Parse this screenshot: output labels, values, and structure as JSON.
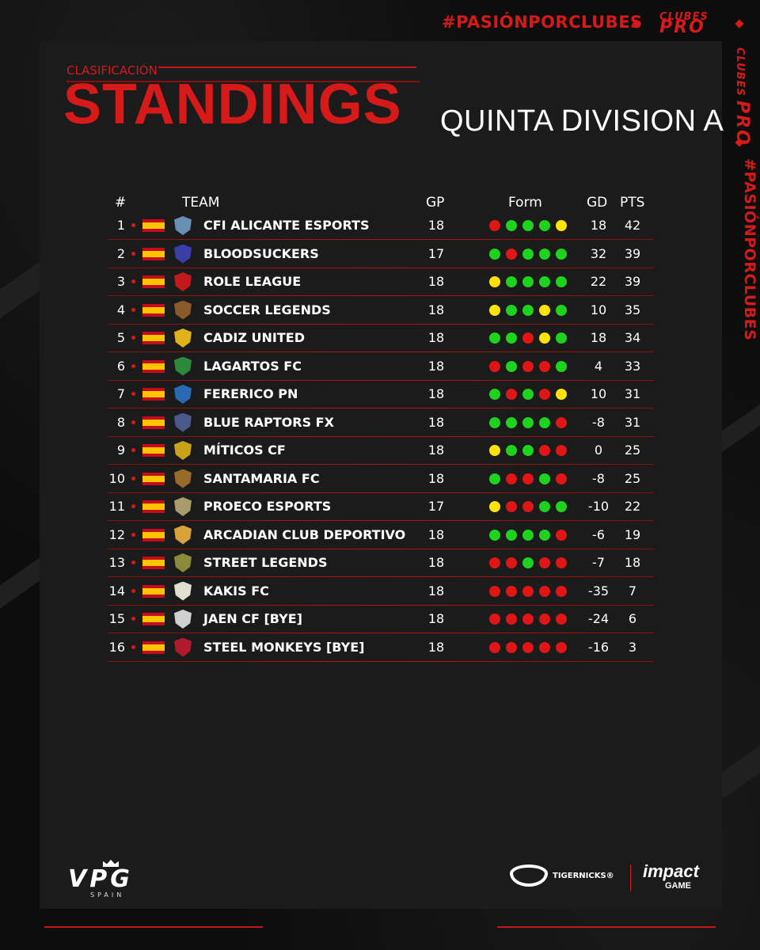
{
  "header": {
    "hashtag": "#PASIÓNPORCLUBES",
    "logo_top": "CLUBES",
    "logo_bottom": "PRO",
    "side_hashtag": "#PASIÓNPORCLUBES"
  },
  "title": {
    "subtitle": "CLASIFICACIÓN",
    "main": "STANDINGS",
    "division": "QUINTA DIVISION A"
  },
  "columns": {
    "rank": "#",
    "team": "TEAM",
    "gp": "GP",
    "form": "Form",
    "gd": "GD",
    "pts": "PTS"
  },
  "form_colors": {
    "W": "#1ed31e",
    "L": "#e01515",
    "D": "#ffe20a"
  },
  "rows": [
    {
      "rank": "1",
      "team": "CFI ALICANTE ESPORTS",
      "gp": "18",
      "form": [
        "L",
        "W",
        "W",
        "W",
        "D"
      ],
      "gd": "18",
      "pts": "42",
      "crest": "#6a8fb5"
    },
    {
      "rank": "2",
      "team": "BLOODSUCKERS",
      "gp": "17",
      "form": [
        "W",
        "L",
        "W",
        "W",
        "W"
      ],
      "gd": "32",
      "pts": "39",
      "crest": "#3a3fa8"
    },
    {
      "rank": "3",
      "team": "ROLE LEAGUE",
      "gp": "18",
      "form": [
        "D",
        "W",
        "W",
        "W",
        "W"
      ],
      "gd": "22",
      "pts": "39",
      "crest": "#c21a1a"
    },
    {
      "rank": "4",
      "team": "SOCCER LEGENDS",
      "gp": "18",
      "form": [
        "D",
        "W",
        "W",
        "D",
        "W"
      ],
      "gd": "10",
      "pts": "35",
      "crest": "#8a5a2a"
    },
    {
      "rank": "5",
      "team": "CADIZ UNITED",
      "gp": "18",
      "form": [
        "W",
        "W",
        "L",
        "D",
        "W"
      ],
      "gd": "18",
      "pts": "34",
      "crest": "#e0b21a"
    },
    {
      "rank": "6",
      "team": "LAGARTOS FC",
      "gp": "18",
      "form": [
        "L",
        "W",
        "L",
        "L",
        "W"
      ],
      "gd": "4",
      "pts": "33",
      "crest": "#2a8a3a"
    },
    {
      "rank": "7",
      "team": "FERERICO PN",
      "gp": "18",
      "form": [
        "W",
        "L",
        "W",
        "L",
        "D"
      ],
      "gd": "10",
      "pts": "31",
      "crest": "#2a6ab5"
    },
    {
      "rank": "8",
      "team": "BLUE RAPTORS FX",
      "gp": "18",
      "form": [
        "W",
        "W",
        "W",
        "W",
        "L"
      ],
      "gd": "-8",
      "pts": "31",
      "crest": "#4a5a8a"
    },
    {
      "rank": "9",
      "team": "MÍTICOS CF",
      "gp": "18",
      "form": [
        "D",
        "W",
        "W",
        "L",
        "L"
      ],
      "gd": "0",
      "pts": "25",
      "crest": "#c9a21a"
    },
    {
      "rank": "10",
      "team": "SANTAMARIA FC",
      "gp": "18",
      "form": [
        "W",
        "L",
        "L",
        "W",
        "L"
      ],
      "gd": "-8",
      "pts": "25",
      "crest": "#9a6a2a"
    },
    {
      "rank": "11",
      "team": "PROECO ESPORTS",
      "gp": "17",
      "form": [
        "D",
        "L",
        "L",
        "W",
        "W"
      ],
      "gd": "-10",
      "pts": "22",
      "crest": "#a89a6a"
    },
    {
      "rank": "12",
      "team": "ARCADIAN CLUB DEPORTIVO",
      "gp": "18",
      "form": [
        "W",
        "W",
        "W",
        "W",
        "L"
      ],
      "gd": "-6",
      "pts": "19",
      "crest": "#d8a23a"
    },
    {
      "rank": "13",
      "team": "STREET LEGENDS",
      "gp": "18",
      "form": [
        "L",
        "L",
        "W",
        "L",
        "L"
      ],
      "gd": "-7",
      "pts": "18",
      "crest": "#8a8a3a"
    },
    {
      "rank": "14",
      "team": "KAKIS FC",
      "gp": "18",
      "form": [
        "L",
        "L",
        "L",
        "L",
        "L"
      ],
      "gd": "-35",
      "pts": "7",
      "crest": "#e0e0d0"
    },
    {
      "rank": "15",
      "team": "JAEN CF [BYE]",
      "gp": "18",
      "form": [
        "L",
        "L",
        "L",
        "L",
        "L"
      ],
      "gd": "-24",
      "pts": "6",
      "crest": "#d0d0d0"
    },
    {
      "rank": "16",
      "team": "STEEL MONKEYS [BYE]",
      "gp": "18",
      "form": [
        "L",
        "L",
        "L",
        "L",
        "L"
      ],
      "gd": "-16",
      "pts": "3",
      "crest": "#b01a2a"
    }
  ],
  "footer": {
    "vpg": "VPG",
    "vpg_sub": "SPAIN",
    "sponsor1": "TIGERNICKS®",
    "sponsor2": "impact",
    "sponsor2_sub": "GAME"
  }
}
